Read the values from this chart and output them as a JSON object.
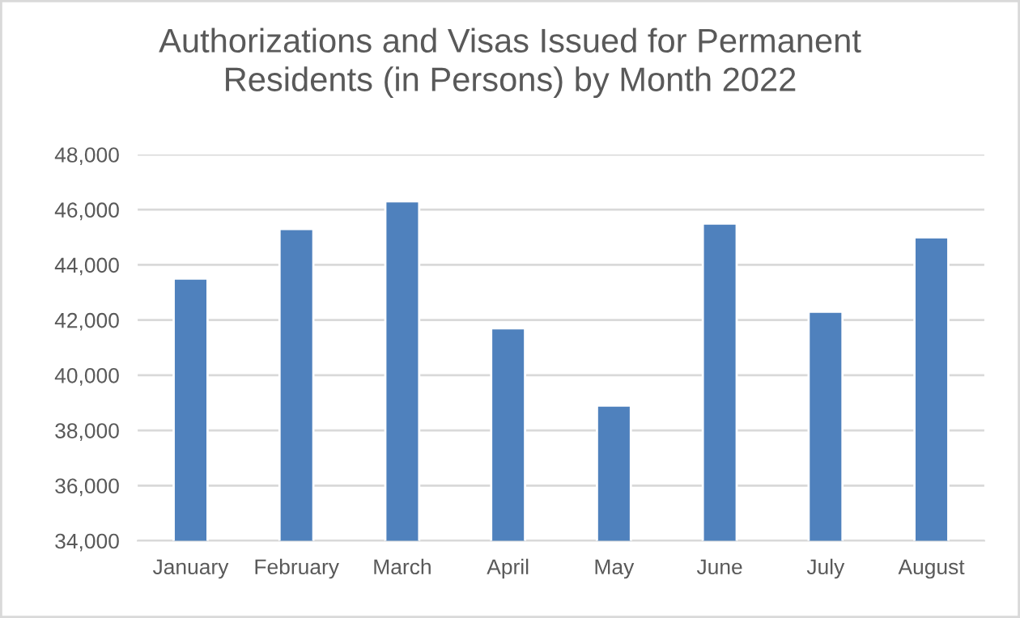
{
  "chart_data": {
    "type": "bar",
    "title": "Authorizations and Visas Issued for Permanent\nResidents (in Persons) by Month 2022",
    "categories": [
      "January",
      "February",
      "March",
      "April",
      "May",
      "June",
      "July",
      "August"
    ],
    "values": [
      43500,
      45300,
      46300,
      41700,
      38900,
      45500,
      42300,
      45000
    ],
    "color": "#4f81bd",
    "ylim": [
      34000,
      48000
    ],
    "yticks": [
      {
        "value": 34000,
        "label": "34,000"
      },
      {
        "value": 36000,
        "label": "36,000"
      },
      {
        "value": 38000,
        "label": "38,000"
      },
      {
        "value": 40000,
        "label": "40,000"
      },
      {
        "value": 42000,
        "label": "42,000"
      },
      {
        "value": 44000,
        "label": "44,000"
      },
      {
        "value": 46000,
        "label": "46,000"
      },
      {
        "value": 48000,
        "label": "48,000"
      }
    ],
    "grid": "y"
  }
}
